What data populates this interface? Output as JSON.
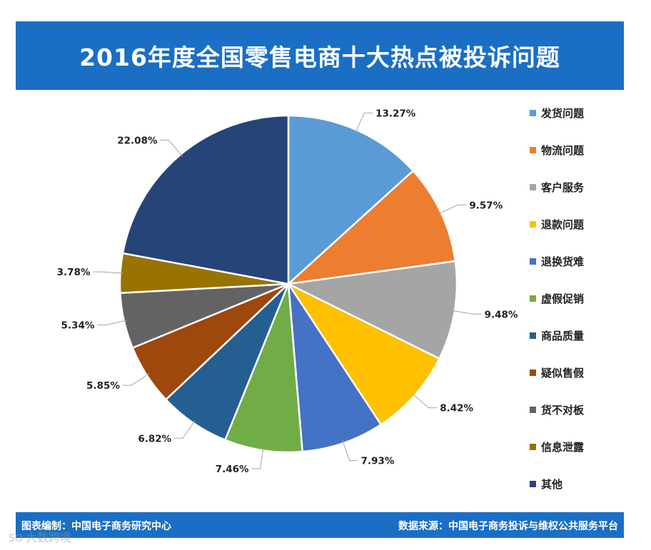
{
  "title": "2016年度全国零售电商十大热点被投诉问题",
  "chart_data": {
    "type": "pie",
    "title": "2016年度全国零售电商十大热点被投诉问题",
    "start_angle_deg": 0,
    "direction": "clockwise",
    "legend_position": "right",
    "slices": [
      {
        "label": "发货问题",
        "value": 13.27,
        "display": "13.27%",
        "color": "#5b9bd5"
      },
      {
        "label": "物流问题",
        "value": 9.57,
        "display": "9.57%",
        "color": "#ed7d31"
      },
      {
        "label": "客户服务",
        "value": 9.48,
        "display": "9.48%",
        "color": "#a5a5a5"
      },
      {
        "label": "退款问题",
        "value": 8.42,
        "display": "8.42%",
        "color": "#ffc000"
      },
      {
        "label": "退换货难",
        "value": 7.93,
        "display": "7.93%",
        "color": "#4472c4"
      },
      {
        "label": "虚假促销",
        "value": 7.46,
        "display": "7.46%",
        "color": "#70ad47"
      },
      {
        "label": "商品质量",
        "value": 6.82,
        "display": "6.82%",
        "color": "#255e91"
      },
      {
        "label": "疑似售假",
        "value": 5.85,
        "display": "5.85%",
        "color": "#9e480e"
      },
      {
        "label": "货不对板",
        "value": 5.34,
        "display": "5.34%",
        "color": "#636363"
      },
      {
        "label": "信息泄露",
        "value": 3.78,
        "display": "3.78%",
        "color": "#997300"
      },
      {
        "label": "其他",
        "value": 22.08,
        "display": "22.08%",
        "color": "#264478"
      }
    ]
  },
  "footer": {
    "left": "图表编制：中国电子商务研究中心",
    "right": "数据来源：中国电子商务投诉与维权公共服务平台"
  },
  "watermark": {
    "logo": "SO",
    "text": "大数跨境"
  }
}
